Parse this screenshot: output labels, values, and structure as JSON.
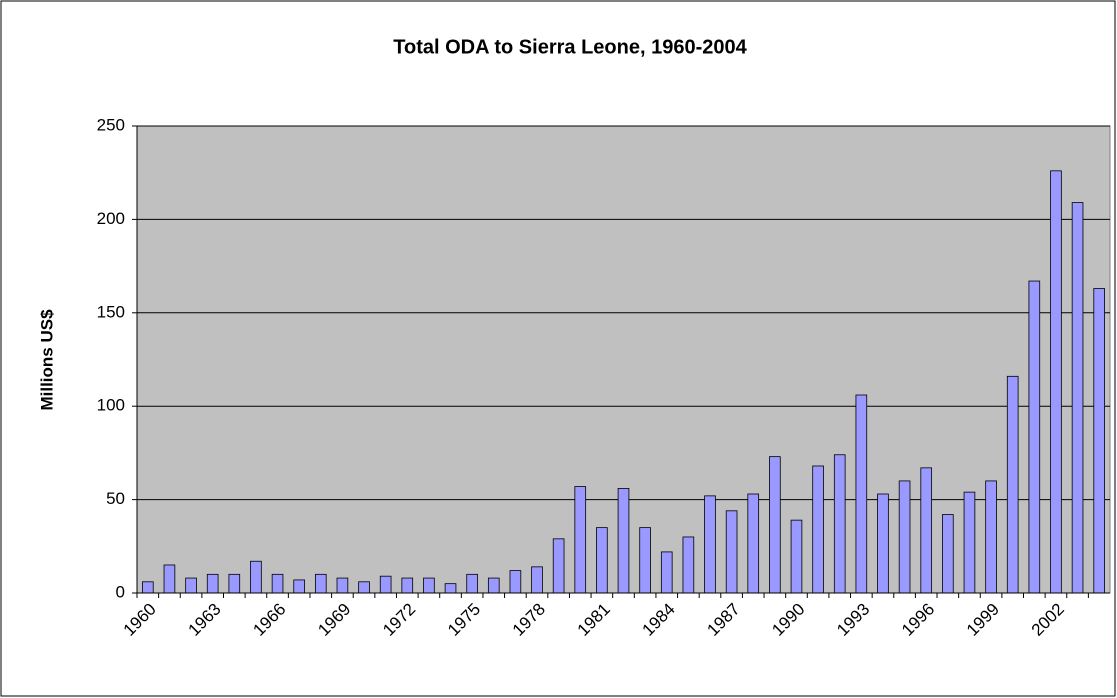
{
  "chart_data": {
    "type": "bar",
    "title": "Total ODA to Sierra Leone, 1960-2004",
    "y_label": "Millions US$",
    "categories": [
      "1960",
      null,
      null,
      "1963",
      null,
      null,
      "1966",
      null,
      null,
      "1969",
      null,
      null,
      "1972",
      null,
      null,
      "1975",
      null,
      null,
      "1978",
      null,
      null,
      "1981",
      null,
      null,
      "1984",
      null,
      null,
      "1987",
      null,
      null,
      "1990",
      null,
      null,
      "1993",
      null,
      null,
      "1996",
      null,
      null,
      "1999",
      null,
      null,
      "2002",
      null,
      null
    ],
    "values": [
      6,
      15,
      8,
      10,
      10,
      17,
      10,
      7,
      10,
      8,
      6,
      9,
      8,
      8,
      5,
      10,
      8,
      12,
      14,
      29,
      57,
      35,
      56,
      35,
      22,
      30,
      52,
      44,
      53,
      73,
      39,
      68,
      74,
      106,
      53,
      60,
      67,
      42,
      54,
      60,
      116,
      167,
      226,
      209,
      163
    ],
    "color": "#9999ff",
    "ylim": [
      0,
      250
    ],
    "yticks": [
      0,
      50,
      100,
      150,
      200,
      250
    ],
    "grid": true
  }
}
